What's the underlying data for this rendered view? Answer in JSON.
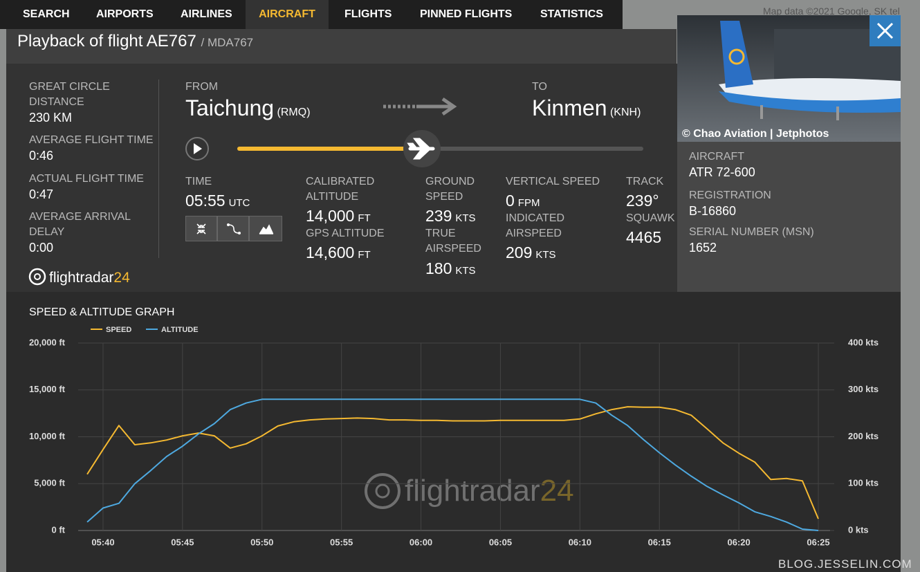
{
  "nav": {
    "items": [
      "SEARCH",
      "AIRPORTS",
      "AIRLINES",
      "AIRCRAFT",
      "FLIGHTS",
      "PINNED FLIGHTS",
      "STATISTICS"
    ]
  },
  "map_attribution": "Map data ©2021 Google, SK tel",
  "header": {
    "title": "Playback of flight AE767",
    "callsign": "/ MDA767"
  },
  "summary": [
    {
      "label": "GREAT CIRCLE DISTANCE",
      "value": "230 KM"
    },
    {
      "label": "AVERAGE FLIGHT TIME",
      "value": "0:46"
    },
    {
      "label": "ACTUAL FLIGHT TIME",
      "value": "0:47"
    },
    {
      "label": "AVERAGE ARRIVAL DELAY",
      "value": "0:00"
    }
  ],
  "route": {
    "from_label": "FROM",
    "from_city": "Taichung",
    "from_code": "(RMQ)",
    "to_label": "TO",
    "to_city": "Kinmen",
    "to_code": "(KNH)"
  },
  "readouts": [
    {
      "label": "TIME",
      "value": "05:55",
      "unit": "UTC"
    },
    {
      "label": "CALIBRATED ALTITUDE",
      "value": "14,000",
      "unit": "FT"
    },
    {
      "label": "GPS ALTITUDE",
      "value": "14,600",
      "unit": "FT"
    },
    {
      "label": "GROUND SPEED",
      "value": "239",
      "unit": "KTS"
    },
    {
      "label": "TRUE AIRSPEED",
      "value": "180",
      "unit": "KTS"
    },
    {
      "label": "VERTICAL SPEED",
      "value": "0",
      "unit": "FPM"
    },
    {
      "label": "INDICATED AIRSPEED",
      "value": "209",
      "unit": "KTS"
    },
    {
      "label": "TRACK",
      "value": "239°"
    },
    {
      "label": "SQUAWK",
      "value": "4465"
    }
  ],
  "logo": {
    "text": "flightradar",
    "suffix": "24"
  },
  "aircraft": {
    "photo_credit": "© Chao Aviation | Jetphotos",
    "fields": [
      {
        "label": "AIRCRAFT",
        "value": "ATR 72-600"
      },
      {
        "label": "REGISTRATION",
        "value": "B-16860"
      },
      {
        "label": "SERIAL NUMBER (MSN)",
        "value": "1652"
      }
    ]
  },
  "footer": "BLOG.JESSELIN.COM",
  "chart_data": {
    "type": "line",
    "title": "SPEED & ALTITUDE GRAPH",
    "x": [
      "05:39",
      "05:40",
      "05:41",
      "05:42",
      "05:43",
      "05:44",
      "05:45",
      "05:46",
      "05:47",
      "05:48",
      "05:49",
      "05:50",
      "05:51",
      "05:52",
      "05:53",
      "05:54",
      "05:55",
      "05:56",
      "05:57",
      "05:58",
      "05:59",
      "06:00",
      "06:01",
      "06:02",
      "06:03",
      "06:04",
      "06:05",
      "06:06",
      "06:07",
      "06:08",
      "06:09",
      "06:10",
      "06:11",
      "06:12",
      "06:13",
      "06:14",
      "06:15",
      "06:16",
      "06:17",
      "06:18",
      "06:19",
      "06:20",
      "06:21",
      "06:22",
      "06:23",
      "06:24",
      "06:25"
    ],
    "series": [
      {
        "name": "SPEED",
        "color": "#f5b931",
        "axis": "y2",
        "values": [
          120,
          173,
          224,
          183,
          187,
          193,
          202,
          208,
          202,
          176,
          185,
          202,
          223,
          232,
          236,
          238,
          239,
          240,
          239,
          236,
          236,
          235,
          235,
          234,
          234,
          234,
          235,
          235,
          235,
          235,
          235,
          238,
          249,
          258,
          264,
          263,
          263,
          258,
          246,
          217,
          187,
          165,
          146,
          109,
          111,
          106,
          25
        ]
      },
      {
        "name": "ALTITUDE",
        "color": "#4ea9e0",
        "values": [
          900,
          2400,
          2900,
          5000,
          6400,
          7900,
          9000,
          10300,
          11400,
          12900,
          13600,
          14000,
          14000,
          14000,
          14000,
          14000,
          14000,
          14000,
          14000,
          14000,
          14000,
          14000,
          14000,
          14000,
          14000,
          14000,
          14000,
          14000,
          14000,
          14000,
          14000,
          14000,
          13600,
          12300,
          11200,
          9700,
          8300,
          7000,
          5800,
          4700,
          3800,
          2950,
          2000,
          1500,
          900,
          150,
          0
        ]
      }
    ],
    "xlim": [
      "05:38",
      "06:26"
    ],
    "xticks": [
      "05:40",
      "05:45",
      "05:50",
      "05:55",
      "06:00",
      "06:05",
      "06:10",
      "06:15",
      "06:20",
      "06:25"
    ],
    "ylim": [
      0,
      20000
    ],
    "yticks": [
      {
        "value": 0,
        "label": "0 ft"
      },
      {
        "value": 5000,
        "label": "5,000 ft"
      },
      {
        "value": 10000,
        "label": "10,000 ft"
      },
      {
        "value": 15000,
        "label": "15,000 ft"
      },
      {
        "value": 20000,
        "label": "20,000 ft"
      }
    ],
    "y2lim": [
      0,
      400
    ],
    "y2ticks": [
      {
        "value": 0,
        "label": "0 kts"
      },
      {
        "value": 100,
        "label": "100 kts"
      },
      {
        "value": 200,
        "label": "200 kts"
      },
      {
        "value": 300,
        "label": "300 kts"
      },
      {
        "value": 400,
        "label": "400 kts"
      }
    ],
    "grid": true
  }
}
